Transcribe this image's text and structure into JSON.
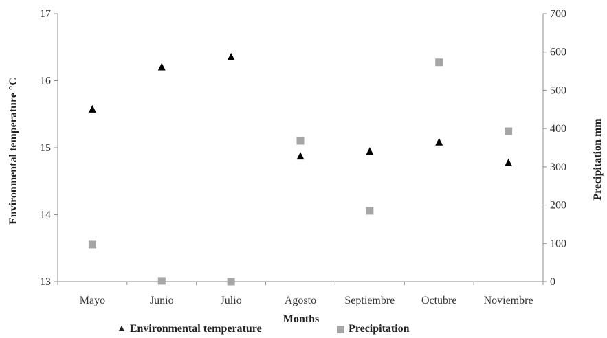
{
  "chart_data": {
    "type": "scatter",
    "categories": [
      "Mayo",
      "Junio",
      "Julio",
      "Agosto",
      "Septiembre",
      "Octubre",
      "Noviembre"
    ],
    "series": [
      {
        "name": "Environmental temperature",
        "axis": "left",
        "marker": "triangle",
        "color": "#000000",
        "values": [
          15.57,
          16.2,
          16.35,
          14.87,
          14.94,
          15.08,
          14.77
        ]
      },
      {
        "name": "Precipitation",
        "axis": "right",
        "marker": "square",
        "color": "#a6a6a6",
        "values": [
          97,
          2,
          0,
          368,
          185,
          573,
          393
        ]
      }
    ],
    "xlabel": "Months",
    "ylabel": "Environmental  temperature °C",
    "y2label": "Precipitation mm",
    "ylim": [
      13,
      17
    ],
    "y2lim": [
      0,
      700
    ],
    "yticks": [
      "13",
      "14",
      "15",
      "16",
      "17"
    ],
    "y2ticks": [
      "0",
      "100",
      "200",
      "300",
      "400",
      "500",
      "600",
      "700"
    ],
    "grid": false,
    "legend_position": "bottom"
  }
}
